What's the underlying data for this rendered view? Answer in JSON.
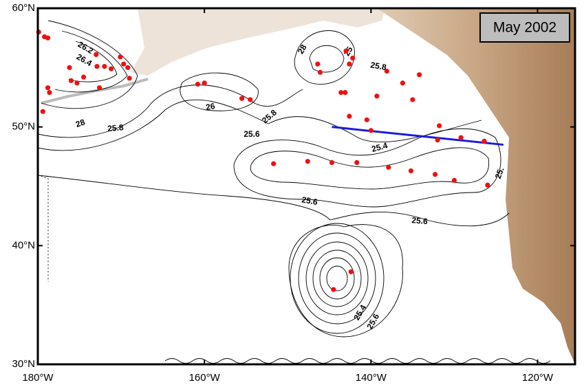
{
  "map": {
    "title": "May 2002",
    "xlim": [
      -180,
      -115.5
    ],
    "ylim": [
      30,
      60
    ],
    "xticks": [
      {
        "value": -180,
        "label": "180°W"
      },
      {
        "value": -160,
        "label": "160°W"
      },
      {
        "value": -140,
        "label": "140°W"
      },
      {
        "value": -120,
        "label": "120°W"
      }
    ],
    "yticks": [
      {
        "value": 30,
        "label": "30°N"
      },
      {
        "value": 40,
        "label": "40°N"
      },
      {
        "value": 50,
        "label": "50°N"
      },
      {
        "value": 60,
        "label": "60°N"
      }
    ],
    "contour_labels": [
      "26.2",
      "26.4",
      "28",
      "25.8",
      "26",
      "25.8",
      "28",
      "25.6",
      "25.8",
      "25.4",
      "25.6",
      "25.6",
      "25.4",
      "25.6",
      "25.",
      "25"
    ],
    "stations": {
      "color": "#ee1111",
      "lon": [
        -179.9,
        -179.2,
        -178.8,
        -179.4,
        -178.8,
        -178.6,
        -176.2,
        -176.0,
        -175.3,
        -174.5,
        -173.0,
        -172.9,
        -172.6,
        -172.0,
        -171.2,
        -170.1,
        -169.7,
        -169.2,
        -169.0,
        -160.8,
        -160.0,
        -155.5,
        -154.5,
        -151.7,
        -147.6,
        -144.7,
        -141.7,
        -146.4,
        -146.1,
        -143.0,
        -142.2,
        -142.6,
        -143.6,
        -143.1,
        -142.6,
        -140.5,
        -140.0,
        -139.3,
        -138.1,
        -136.2,
        -135.0,
        -134.2,
        -131.8,
        -132.0,
        -129.2,
        -126.4,
        -137.9,
        -135.2,
        -132.3,
        -130.0,
        -126.0,
        -144.5,
        -142.4
      ],
      "lat": [
        58.0,
        57.6,
        57.5,
        51.3,
        53.3,
        52.9,
        55.0,
        53.9,
        53.7,
        54.2,
        56.1,
        55.1,
        53.3,
        55.1,
        54.9,
        55.9,
        55.3,
        55.0,
        54.1,
        53.6,
        53.7,
        52.4,
        52.3,
        46.9,
        47.1,
        47.0,
        47.0,
        55.3,
        54.6,
        56.4,
        55.8,
        55.3,
        52.9,
        52.9,
        50.9,
        50.6,
        49.7,
        52.6,
        54.7,
        53.7,
        52.3,
        54.4,
        50.1,
        48.9,
        49.1,
        48.8,
        46.6,
        46.3,
        46.0,
        45.5,
        45.1,
        36.3,
        37.8
      ]
    },
    "section": {
      "color": "#1a1adc",
      "lon": [
        -144.7,
        -124.1
      ],
      "lat": [
        50.0,
        48.5
      ]
    }
  }
}
